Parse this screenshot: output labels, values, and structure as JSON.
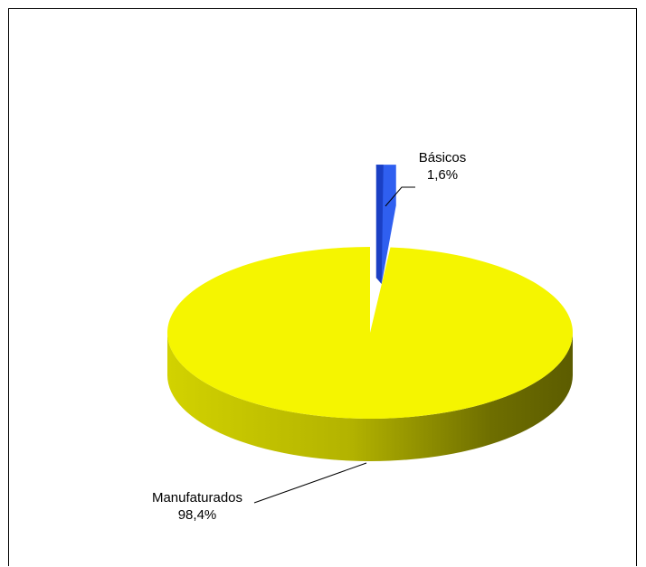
{
  "chart_data": {
    "type": "pie",
    "style": "3d",
    "slices": [
      {
        "name": "Básicos",
        "value": 1.6,
        "label": "1,6%",
        "color": "#2F5FF0",
        "exploded": true
      },
      {
        "name": "Manufaturados",
        "value": 98.4,
        "label": "98,4%",
        "color": "#F5F500",
        "exploded": false
      }
    ],
    "labels": {
      "basicos": {
        "name": "Básicos",
        "value": "1,6%"
      },
      "manufaturados": {
        "name": "Manufaturados",
        "value": "98,4%"
      }
    }
  }
}
